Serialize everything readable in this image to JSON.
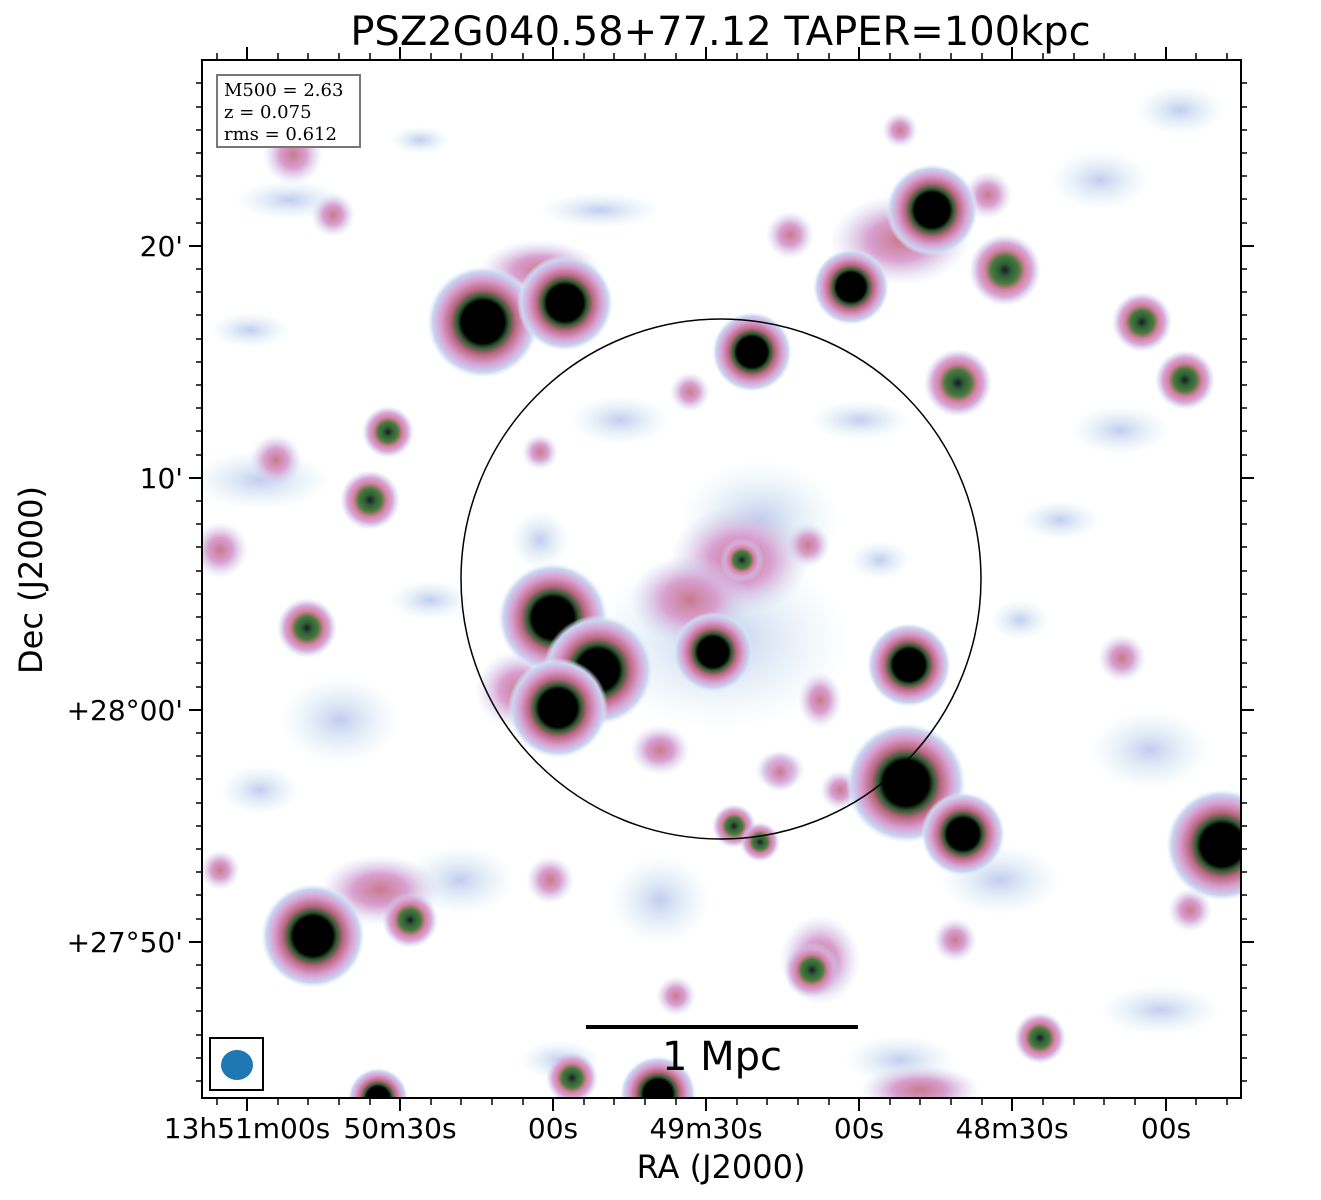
{
  "title": "PSZ2G040.58+77.12 TAPER=100kpc",
  "axes": {
    "xlabel": "RA (J2000)",
    "ylabel": "Dec (J2000)",
    "x_ticks": [
      "13h51m00s",
      "50m30s",
      "00s",
      "49m30s",
      "00s",
      "48m30s",
      "00s"
    ],
    "y_ticks": [
      "20'",
      "10'",
      "+28°00'",
      "+27°50'"
    ]
  },
  "info": {
    "m500": "M500 = 2.63",
    "z": "z = 0.075",
    "rms": "rms = 0.612"
  },
  "scalebar": {
    "label": "1 Mpc"
  },
  "colors": {
    "beam": "#1f77b4",
    "faint": "#c7d3f0",
    "mid": "#d88fc0",
    "bright": "#3f6b3a",
    "core": "#000000"
  }
}
